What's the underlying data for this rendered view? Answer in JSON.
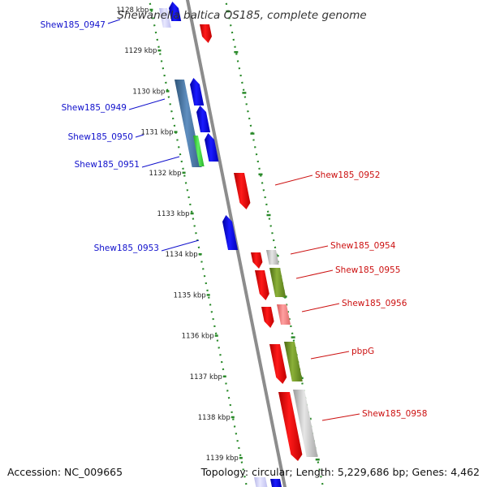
{
  "title": "Shewanella baltica OS185, complete genome",
  "footer": {
    "accession": "Accession: NC_009665",
    "topology": "Topology: circular; Length: 5,229,686 bp; Genes: 4,462"
  },
  "colors": {
    "backbone": "#8c8c8c",
    "scale_ticks": "#2a8a2a",
    "forward_label": "#1010cc",
    "reverse_label": "#cc1010",
    "blue_gene": "#0a0ae6",
    "red_gene": "#ee0a0a",
    "steel_gene": "#4a78a8",
    "green_gene": "#38c838",
    "olive_gene": "#6b8e23",
    "gray_gene": "#b8b8b8",
    "pink_gene": "#f07878"
  },
  "scale_labels": [
    "1128 kbp",
    "1129 kbp",
    "1130 kbp",
    "1131 kbp",
    "1132 kbp",
    "1133 kbp",
    "1134 kbp",
    "1135 kbp",
    "1136 kbp",
    "1137 kbp",
    "1138 kbp",
    "1139 kbp"
  ],
  "forward_genes": [
    {
      "label": "Shew185_0947",
      "color": "blue"
    },
    {
      "label": "Shew185_0949",
      "color": "blue"
    },
    {
      "label": "Shew185_0950",
      "color": "blue"
    },
    {
      "label": "Shew185_0951",
      "color": "blue"
    },
    {
      "label": "Shew185_0953",
      "color": "blue"
    }
  ],
  "reverse_genes": [
    {
      "label": "Shew185_0952",
      "color": "red"
    },
    {
      "label": "Shew185_0954",
      "color": "red"
    },
    {
      "label": "Shew185_0955",
      "color": "red"
    },
    {
      "label": "Shew185_0956",
      "color": "red"
    },
    {
      "label": "pbpG",
      "color": "red"
    },
    {
      "label": "Shew185_0958",
      "color": "red"
    }
  ]
}
